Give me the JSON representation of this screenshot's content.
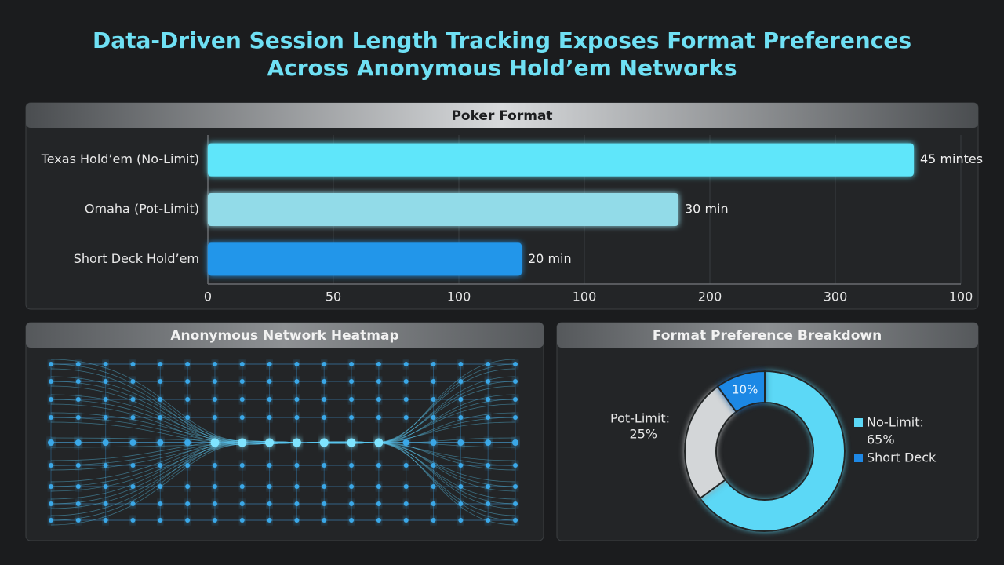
{
  "title": [
    "Data-Driven Session Length Tracking Exposes Format Preferences",
    "Across Anonymous Hold’em Networks"
  ],
  "heatmap": {
    "title": "Anonymous Network Heatmap"
  },
  "chart_data": [
    {
      "type": "bar",
      "orientation": "horizontal",
      "title": "Poker Format",
      "categories": [
        "Texas Hold’em (No-Limit)",
        "Omaha (Pot-Limit)",
        "Short Deck Hold’em"
      ],
      "values": [
        45,
        30,
        20
      ],
      "value_labels": [
        "45 mintes",
        "30 min",
        "20 min"
      ],
      "colors": [
        "#5fe6fa",
        "#92dbe8",
        "#2196ea"
      ],
      "xlim": [
        0,
        48
      ],
      "xticks": [
        {
          "value": 0,
          "label": "0"
        },
        {
          "value": 8,
          "label": "50"
        },
        {
          "value": 16,
          "label": "100"
        },
        {
          "value": 24,
          "label": "100"
        },
        {
          "value": 32,
          "label": "200"
        },
        {
          "value": 40,
          "label": "300"
        },
        {
          "value": 48,
          "label": "100"
        }
      ],
      "grid": true
    },
    {
      "type": "pie",
      "donut": true,
      "title": "Format Preference Breakdown",
      "categories": [
        "No-Limit:",
        "Pot-Limit:",
        "Short Deck"
      ],
      "values": [
        65,
        25,
        10
      ],
      "value_labels": [
        "65%",
        "25%",
        "10%"
      ],
      "colors": [
        "#5cd8f6",
        "#d3d6d8",
        "#1e88e5"
      ]
    }
  ]
}
